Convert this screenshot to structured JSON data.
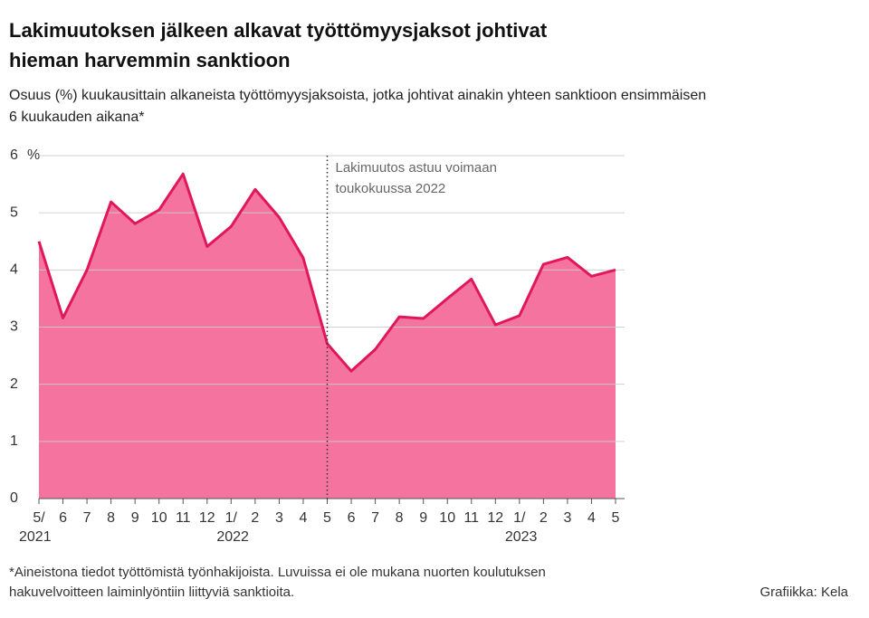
{
  "chart_data": {
    "type": "area",
    "title": [
      "Lakimuutoksen jälkeen alkavat työttömyysjaksot johtivat",
      "hieman harvemmin sanktioon"
    ],
    "subtitle": [
      "Osuus (%) kuukausittain alkaneista työttömyysjaksoista, jotka johtivat ainakin yhteen sanktioon ensimmäisen",
      "6 kuukauden aikana*"
    ],
    "categories": [
      "5/",
      "6",
      "7",
      "8",
      "9",
      "10",
      "11",
      "12",
      "1/",
      "2",
      "3",
      "4",
      "5",
      "6",
      "7",
      "8",
      "9",
      "10",
      "11",
      "12",
      "1/",
      "2",
      "3",
      "4",
      "5"
    ],
    "category_years": [
      "2021",
      null,
      null,
      null,
      null,
      null,
      null,
      null,
      "2022",
      null,
      null,
      null,
      null,
      null,
      null,
      null,
      null,
      null,
      null,
      null,
      "2023",
      null,
      null,
      null,
      null
    ],
    "series": [
      {
        "color": "#e0175a",
        "fill": "#f4749f",
        "values": [
          4.5,
          3.16,
          4.0,
          5.19,
          4.81,
          5.05,
          5.68,
          4.41,
          4.76,
          5.41,
          4.92,
          4.21,
          2.71,
          2.23,
          2.61,
          3.18,
          3.15,
          3.5,
          3.84,
          3.04,
          3.2,
          4.1,
          4.22,
          3.89,
          4.0
        ]
      }
    ],
    "ylim": [
      0,
      6
    ],
    "yticks": [
      0,
      1,
      2,
      3,
      4,
      5,
      6
    ],
    "y_unit": "%",
    "grid": true,
    "annotation": {
      "text": [
        "Lakimuutos astuu voimaan",
        "toukokuussa 2022"
      ],
      "x_index": 12
    },
    "footnote": [
      "*Aineistona tiedot työttömistä työnhakijoista. Luvuissa ei ole mukana nuorten koulutuksen",
      "hakuvelvoitteen laiminlyöntiin liittyviä sanktioita."
    ],
    "credit": "Grafiikka: Kela"
  }
}
